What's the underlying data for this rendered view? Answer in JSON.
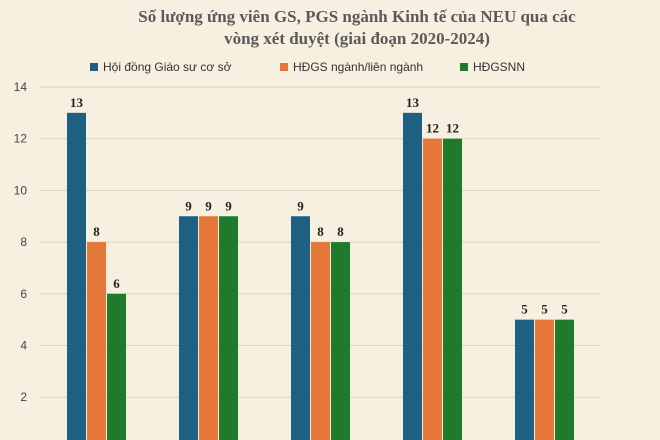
{
  "chart_data": {
    "type": "bar",
    "title_lines": [
      "Số lượng ứng viên GS, PGS ngành Kinh tế của NEU qua các",
      "vòng xét duyệt (giai đoạn 2020-2024)"
    ],
    "categories": [
      "",
      "",
      "",
      "",
      ""
    ],
    "series": [
      {
        "name": "Hội đồng Giáo sư cơ sở",
        "color": "#1f5f7f",
        "values": [
          13,
          9,
          9,
          13,
          5
        ]
      },
      {
        "name": "HĐGS ngành/liên ngành",
        "color": "#e5773a",
        "values": [
          8,
          9,
          8,
          12,
          5
        ]
      },
      {
        "name": "HĐGSNN",
        "color": "#1f7a2e",
        "values": [
          6,
          9,
          8,
          12,
          5
        ]
      }
    ],
    "ylim": [
      0,
      14
    ],
    "yticks": [
      "2",
      "4",
      "6",
      "8",
      "10",
      "12",
      "14"
    ],
    "grid": true,
    "legend": "top"
  }
}
